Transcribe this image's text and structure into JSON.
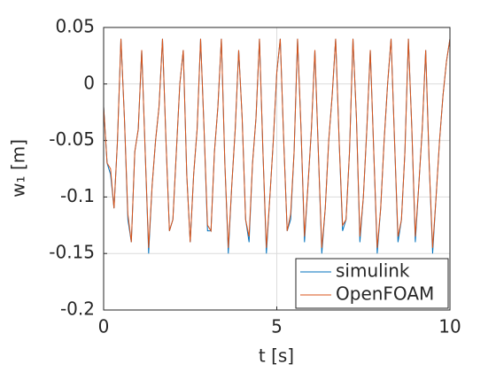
{
  "chart_data": {
    "type": "line",
    "x": [
      0,
      0.1,
      0.2,
      0.3,
      0.4,
      0.5,
      0.6,
      0.7,
      0.8,
      0.9,
      1,
      1.1,
      1.2,
      1.3,
      1.4,
      1.5,
      1.6,
      1.7,
      1.8,
      1.9,
      2,
      2.1,
      2.2,
      2.3,
      2.4,
      2.5,
      2.6,
      2.7,
      2.8,
      2.9,
      3,
      3.1,
      3.2,
      3.3,
      3.4,
      3.5,
      3.6,
      3.7,
      3.8,
      3.9,
      4,
      4.1,
      4.2,
      4.3,
      4.4,
      4.5,
      4.6,
      4.7,
      4.8,
      4.9,
      5,
      5.1,
      5.2,
      5.3,
      5.4,
      5.5,
      5.6,
      5.7,
      5.8,
      5.9,
      6,
      6.1,
      6.2,
      6.3,
      6.4,
      6.5,
      6.6,
      6.7,
      6.8,
      6.9,
      7,
      7.1,
      7.2,
      7.3,
      7.4,
      7.5,
      7.6,
      7.7,
      7.8,
      7.9,
      8,
      8.1,
      8.2,
      8.3,
      8.4,
      8.5,
      8.6,
      8.7,
      8.8,
      8.9,
      9,
      9.1,
      9.2,
      9.3,
      9.4,
      9.5,
      9.6,
      9.7,
      9.8,
      9.9,
      10
    ],
    "series": [
      {
        "name": "simulink",
        "color": "#0072bd",
        "values": [
          -0.02,
          -0.07,
          -0.08,
          -0.11,
          -0.05,
          0.04,
          -0.03,
          -0.12,
          -0.14,
          -0.06,
          -0.04,
          0.03,
          -0.06,
          -0.15,
          -0.09,
          -0.05,
          -0.02,
          0.04,
          -0.05,
          -0.13,
          -0.12,
          -0.06,
          0.0,
          0.03,
          -0.08,
          -0.14,
          -0.08,
          -0.04,
          0.04,
          -0.04,
          -0.13,
          -0.13,
          -0.06,
          -0.02,
          0.04,
          -0.07,
          -0.15,
          -0.09,
          -0.04,
          0.03,
          -0.03,
          -0.12,
          -0.14,
          -0.07,
          -0.03,
          0.04,
          -0.06,
          -0.15,
          -0.1,
          -0.05,
          0.01,
          0.04,
          -0.05,
          -0.13,
          -0.12,
          -0.06,
          0.04,
          -0.04,
          -0.14,
          -0.09,
          -0.04,
          0.03,
          -0.06,
          -0.15,
          -0.11,
          -0.05,
          -0.01,
          0.04,
          -0.05,
          -0.13,
          -0.12,
          -0.06,
          0.04,
          -0.03,
          -0.14,
          -0.1,
          -0.04,
          0.03,
          -0.06,
          -0.15,
          -0.11,
          -0.05,
          0.0,
          0.04,
          -0.05,
          -0.14,
          -0.12,
          -0.06,
          0.04,
          -0.04,
          -0.14,
          -0.09,
          -0.04,
          0.03,
          -0.07,
          -0.15,
          -0.1,
          -0.05,
          -0.01,
          0.02,
          0.04
        ]
      },
      {
        "name": "OpenFOAM",
        "color": "#d95319",
        "values": [
          -0.02,
          -0.07,
          -0.075,
          -0.11,
          -0.05,
          0.04,
          -0.03,
          -0.115,
          -0.14,
          -0.06,
          -0.04,
          0.03,
          -0.06,
          -0.145,
          -0.09,
          -0.05,
          -0.02,
          0.04,
          -0.05,
          -0.13,
          -0.12,
          -0.06,
          0.0,
          0.03,
          -0.08,
          -0.14,
          -0.08,
          -0.04,
          0.04,
          -0.04,
          -0.125,
          -0.13,
          -0.06,
          -0.02,
          0.04,
          -0.07,
          -0.145,
          -0.09,
          -0.04,
          0.03,
          -0.03,
          -0.12,
          -0.135,
          -0.07,
          -0.03,
          0.04,
          -0.06,
          -0.145,
          -0.1,
          -0.05,
          0.01,
          0.04,
          -0.05,
          -0.13,
          -0.115,
          -0.06,
          0.04,
          -0.04,
          -0.135,
          -0.09,
          -0.04,
          0.03,
          -0.06,
          -0.145,
          -0.11,
          -0.05,
          -0.01,
          0.04,
          -0.05,
          -0.125,
          -0.12,
          -0.06,
          0.04,
          -0.03,
          -0.135,
          -0.1,
          -0.04,
          0.03,
          -0.06,
          -0.145,
          -0.11,
          -0.05,
          0.0,
          0.04,
          -0.05,
          -0.135,
          -0.12,
          -0.06,
          0.04,
          -0.04,
          -0.135,
          -0.09,
          -0.04,
          0.03,
          -0.07,
          -0.145,
          -0.1,
          -0.05,
          -0.01,
          0.02,
          0.04
        ]
      }
    ],
    "xlabel": "t [s]",
    "ylabel": "w₁ [m]",
    "xlim": [
      0,
      10
    ],
    "xticks": [
      0,
      5,
      10
    ],
    "ylim": [
      -0.2,
      0.05
    ],
    "yticks": [
      -0.2,
      -0.15,
      -0.1,
      -0.05,
      0,
      0.05
    ],
    "grid": true,
    "legend": "southeast"
  }
}
